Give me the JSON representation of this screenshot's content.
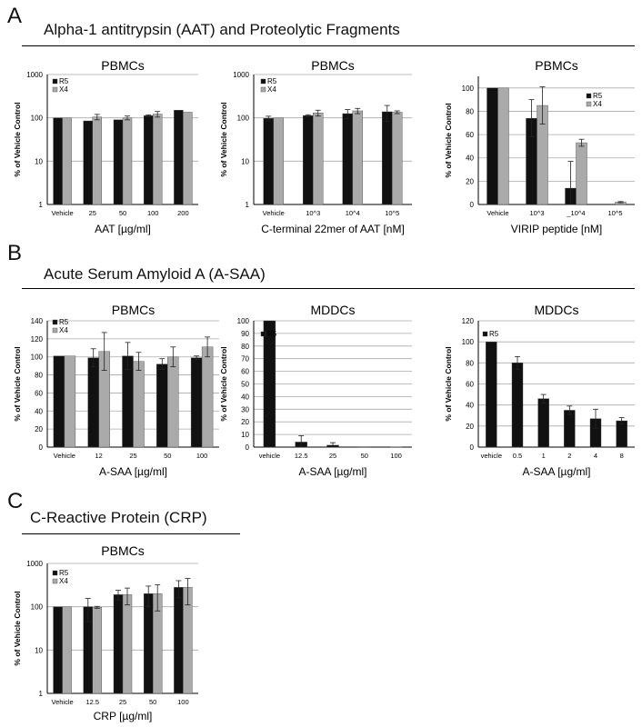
{
  "sections": [
    {
      "letter": "A",
      "title": "Alpha-1 antitrypsin (AAT) and Proteolytic Fragments"
    },
    {
      "letter": "B",
      "title": "Acute Serum Amyloid A (A-SAA)"
    },
    {
      "letter": "C",
      "title": "C-Reactive Protein (CRP)"
    }
  ],
  "colors": {
    "R5": "#111111",
    "X4": "#aaaaaa",
    "grid": "#aaaaaa"
  },
  "chart_data": [
    {
      "id": "A1",
      "type": "bar",
      "title": "PBMCs",
      "ylabel": "% of Vehicle Control",
      "xlabel": "AAT [µg/ml]",
      "scale": "log",
      "ylim": [
        1,
        1000
      ],
      "yticks": [
        1,
        10,
        100,
        1000
      ],
      "ytick_labels": [
        "1",
        "10",
        "100",
        "1000"
      ],
      "categories": [
        "Vehicle",
        "25",
        "50",
        "100",
        "200"
      ],
      "legend": [
        "R5",
        "X4"
      ],
      "series": [
        {
          "name": "R5",
          "values": [
            100,
            85,
            90,
            112,
            150
          ],
          "errors": [
            0,
            0,
            0,
            5,
            0
          ]
        },
        {
          "name": "X4",
          "values": [
            100,
            105,
            100,
            122,
            135
          ],
          "errors": [
            0,
            15,
            10,
            18,
            0
          ]
        }
      ]
    },
    {
      "id": "A2",
      "type": "bar",
      "title": "PBMCs",
      "ylabel": "% of Vehicle Control",
      "xlabel": "C-terminal 22mer of AAT [nM]",
      "scale": "log",
      "ylim": [
        1,
        1000
      ],
      "yticks": [
        1,
        10,
        100,
        1000
      ],
      "ytick_labels": [
        "1",
        "10",
        "100",
        "1000"
      ],
      "categories": [
        "Vehicle",
        "10^3",
        "10^4",
        "10^5"
      ],
      "legend": [
        "R5",
        "X4"
      ],
      "series": [
        {
          "name": "R5",
          "values": [
            97,
            113,
            125,
            138
          ],
          "errors": [
            12,
            5,
            30,
            55
          ]
        },
        {
          "name": "X4",
          "values": [
            100,
            130,
            145,
            135
          ],
          "errors": [
            0,
            20,
            20,
            10
          ]
        }
      ]
    },
    {
      "id": "A3",
      "type": "bar",
      "title": "PBMCs",
      "ylabel": "% of Vehicle Control",
      "xlabel": "VIRIP peptide [nM]",
      "scale": "linear",
      "ylim": [
        0,
        110
      ],
      "yticks": [
        0,
        20,
        40,
        60,
        80,
        100
      ],
      "ytick_labels": [
        "0",
        "20",
        "40",
        "60",
        "80",
        "100"
      ],
      "categories": [
        "Vehicle",
        "10^3",
        "_10^4",
        "10^5"
      ],
      "legend": [
        "R5",
        "X4"
      ],
      "series": [
        {
          "name": "R5",
          "values": [
            100,
            74,
            14,
            0
          ],
          "errors": [
            0,
            16,
            23,
            0
          ]
        },
        {
          "name": "X4",
          "values": [
            100,
            85,
            53,
            2
          ],
          "errors": [
            0,
            16,
            3,
            0.5
          ]
        }
      ]
    },
    {
      "id": "B1",
      "type": "bar",
      "title": "PBMCs",
      "ylabel": "% of Vehicle Control",
      "xlabel": "A-SAA [µg/ml]",
      "scale": "linear",
      "ylim": [
        0,
        140
      ],
      "yticks": [
        0,
        20,
        40,
        60,
        80,
        100,
        120,
        140
      ],
      "ytick_labels": [
        "0",
        "20",
        "40",
        "60",
        "80",
        "100",
        "120",
        "140"
      ],
      "categories": [
        "Vehicle",
        "12",
        "25",
        "50",
        "100"
      ],
      "legend": [
        "R5",
        "X4"
      ],
      "series": [
        {
          "name": "R5",
          "values": [
            101,
            99,
            101,
            92,
            99
          ],
          "errors": [
            0,
            10,
            15,
            6,
            2
          ]
        },
        {
          "name": "X4",
          "values": [
            101,
            106,
            95,
            100,
            111
          ],
          "errors": [
            0,
            21,
            10,
            11,
            11
          ]
        }
      ]
    },
    {
      "id": "B2",
      "type": "bar",
      "title": "MDDCs",
      "ylabel": "% of Vehicle Control",
      "xlabel": "A-SAA [µg/ml]",
      "scale": "linear",
      "ylim": [
        0,
        100
      ],
      "yticks": [
        0,
        10,
        20,
        30,
        40,
        50,
        60,
        70,
        80,
        90,
        100
      ],
      "ytick_labels": [
        "0",
        "10",
        "20",
        "30",
        "40",
        "50",
        "60",
        "70",
        "80",
        "90",
        "100"
      ],
      "categories": [
        "vehicle",
        "12.5",
        "25",
        "50",
        "100"
      ],
      "legend": [
        "R5"
      ],
      "series": [
        {
          "name": "R5",
          "values": [
            100,
            4,
            1.5,
            0.3,
            0.2
          ],
          "errors": [
            0,
            5,
            2,
            0,
            0
          ]
        }
      ]
    },
    {
      "id": "B3",
      "type": "bar",
      "title": "MDDCs",
      "ylabel": "% of Vehicle Control",
      "xlabel": "A-SAA [µg/ml]",
      "scale": "linear",
      "ylim": [
        0,
        120
      ],
      "yticks": [
        0,
        20,
        40,
        60,
        80,
        100,
        120
      ],
      "ytick_labels": [
        "0",
        "20",
        "40",
        "60",
        "80",
        "100",
        "120"
      ],
      "categories": [
        "vehicle",
        "0.5",
        "1",
        "2",
        "4",
        "8"
      ],
      "legend": [
        "R5"
      ],
      "series": [
        {
          "name": "R5",
          "values": [
            100,
            80,
            46,
            35,
            27,
            25
          ],
          "errors": [
            0,
            6,
            4,
            4,
            9,
            3
          ]
        }
      ]
    },
    {
      "id": "C1",
      "type": "bar",
      "title": "PBMCs",
      "ylabel": "% of Vehicle Control",
      "xlabel": "CRP [µg/ml]",
      "scale": "log",
      "ylim": [
        1,
        1000
      ],
      "yticks": [
        1,
        10,
        100,
        1000
      ],
      "ytick_labels": [
        "1",
        "10",
        "100",
        "1000"
      ],
      "categories": [
        "Vehicle",
        "12.5",
        "25",
        "50",
        "100"
      ],
      "legend": [
        "R5",
        "X4"
      ],
      "series": [
        {
          "name": "R5",
          "values": [
            100,
            100,
            190,
            200,
            280
          ],
          "errors": [
            0,
            55,
            50,
            100,
            120
          ]
        },
        {
          "name": "X4",
          "values": [
            100,
            97,
            190,
            200,
            280
          ],
          "errors": [
            0,
            5,
            80,
            120,
            170
          ]
        }
      ]
    }
  ]
}
